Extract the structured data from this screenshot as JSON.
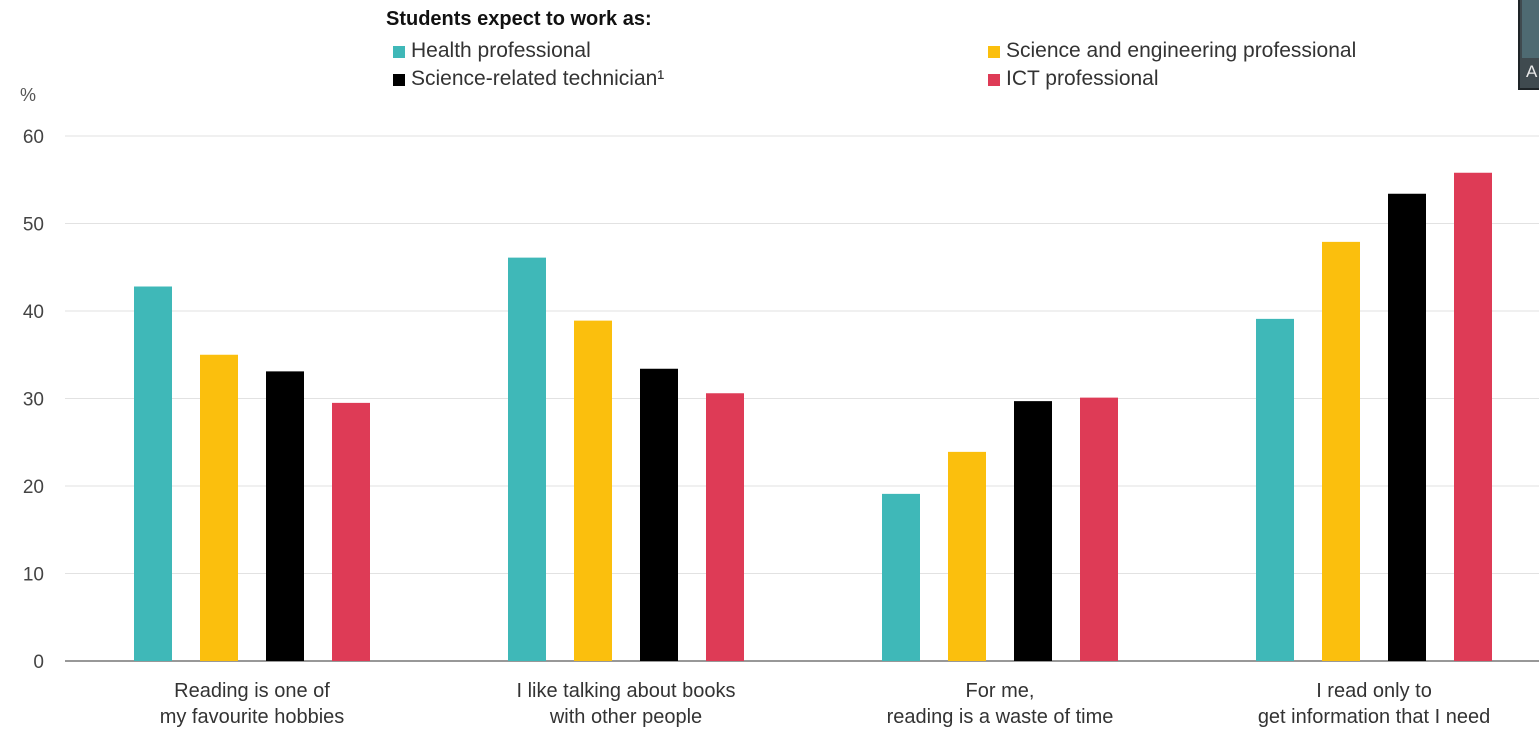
{
  "chart_data": {
    "type": "bar",
    "legend_title": "Students expect to work as:",
    "unit": "%",
    "categories": [
      [
        "Reading is one of",
        "my favourite hobbies"
      ],
      [
        "I like talking about books",
        "with other people"
      ],
      [
        "For me,",
        "reading is a waste of time"
      ],
      [
        "I read only to",
        "get information that I need"
      ]
    ],
    "series": [
      {
        "name": "Health professional",
        "color": "#3fb8b8",
        "values": [
          42.8,
          46.1,
          19.1,
          39.1
        ]
      },
      {
        "name": "Science and engineering professional",
        "color": "#fbbf0d",
        "values": [
          35.0,
          38.9,
          23.9,
          47.9
        ]
      },
      {
        "name": "Science-related technician¹",
        "color": "#000000",
        "values": [
          33.1,
          33.4,
          29.7,
          53.4
        ]
      },
      {
        "name": "ICT professional",
        "color": "#de3b56",
        "values": [
          29.5,
          30.6,
          30.1,
          55.8
        ]
      }
    ],
    "yticks": [
      0,
      10,
      20,
      30,
      40,
      50,
      60
    ],
    "ylim": [
      0,
      60
    ],
    "grid": true,
    "legend_position": "top"
  },
  "corner_widget": {
    "letter": "A"
  }
}
